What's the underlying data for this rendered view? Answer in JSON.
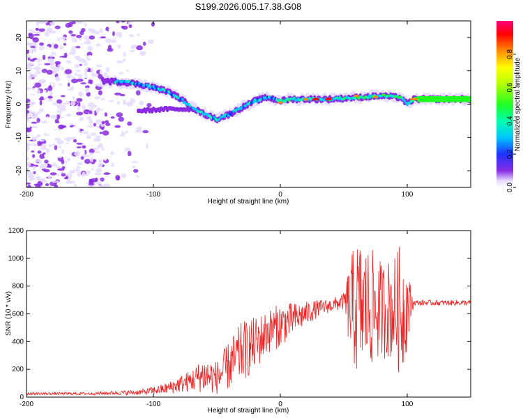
{
  "title": "S199.2026.005.17.38.G08",
  "chart_data": [
    {
      "type": "heatmap",
      "xlabel": "Height of straight line (km)",
      "ylabel": "Frequency (Hz)",
      "xlim": [
        -200,
        150
      ],
      "ylim": [
        -25,
        25
      ],
      "xticks": [
        -200,
        -100,
        0,
        100
      ],
      "xtick_labels": [
        "-200",
        "-100",
        "0",
        "100"
      ],
      "yticks": [
        -20,
        -10,
        0,
        10,
        20
      ],
      "ytick_labels": [
        "-20",
        "-10",
        "0",
        "10",
        "20"
      ],
      "ridge": {
        "description_points_km_hz": [
          [
            -140,
            7
          ],
          [
            -120,
            6.5
          ],
          [
            -105,
            5.5
          ],
          [
            -90,
            4
          ],
          [
            -80,
            2
          ],
          [
            -70,
            -1
          ],
          [
            -60,
            -3
          ],
          [
            -50,
            -4.5
          ],
          [
            -40,
            -3
          ],
          [
            -30,
            -1
          ],
          [
            -20,
            1
          ],
          [
            -10,
            2
          ],
          [
            0,
            1
          ],
          [
            10,
            1.5
          ],
          [
            20,
            1.5
          ],
          [
            40,
            1.5
          ],
          [
            60,
            2
          ],
          [
            80,
            2.5
          ],
          [
            95,
            2
          ],
          [
            100,
            0
          ],
          [
            105,
            1.5
          ],
          [
            150,
            1.5
          ]
        ],
        "lower_branch_km_hz": [
          [
            -110,
            -2
          ],
          [
            -90,
            -1.5
          ],
          [
            -75,
            -1.5
          ]
        ]
      }
    },
    {
      "type": "colorbar",
      "label": "Normalized spectral amplitude",
      "lim": [
        0,
        1
      ],
      "ticks": [
        0.0,
        0.2,
        0.4,
        0.6,
        0.8
      ],
      "tick_labels": [
        "0.0",
        "0.2",
        "0.4",
        "0.6",
        "0.8"
      ]
    },
    {
      "type": "line",
      "xlabel": "Height of straight line (km)",
      "ylabel": "SNR (10 * v/v)",
      "xlim": [
        -200,
        150
      ],
      "ylim": [
        0,
        1200
      ],
      "xticks": [
        -200,
        -100,
        0,
        100
      ],
      "xtick_labels": [
        "-200",
        "-100",
        "0",
        "100"
      ],
      "yticks": [
        0,
        200,
        400,
        600,
        800,
        1000,
        1200
      ],
      "ytick_labels": [
        "0",
        "200",
        "400",
        "600",
        "800",
        "1000",
        "1200"
      ],
      "color": "#ee2222",
      "series": [
        {
          "name": "SNR",
          "envelope_km": [
            -200,
            -150,
            -110,
            -90,
            -70,
            -60,
            -50,
            -40,
            -30,
            -20,
            -10,
            0,
            10,
            20,
            30,
            40,
            50,
            55,
            60,
            70,
            80,
            90,
            95,
            100,
            105,
            150
          ],
          "envelope_mean": [
            25,
            25,
            35,
            60,
            120,
            160,
            140,
            230,
            330,
            380,
            470,
            520,
            560,
            600,
            640,
            660,
            690,
            650,
            650,
            640,
            630,
            640,
            620,
            640,
            680,
            680
          ],
          "envelope_spread": [
            10,
            10,
            20,
            40,
            80,
            130,
            120,
            180,
            220,
            200,
            160,
            160,
            120,
            90,
            60,
            50,
            60,
            350,
            500,
            450,
            350,
            380,
            500,
            300,
            20,
            20
          ]
        }
      ]
    }
  ]
}
